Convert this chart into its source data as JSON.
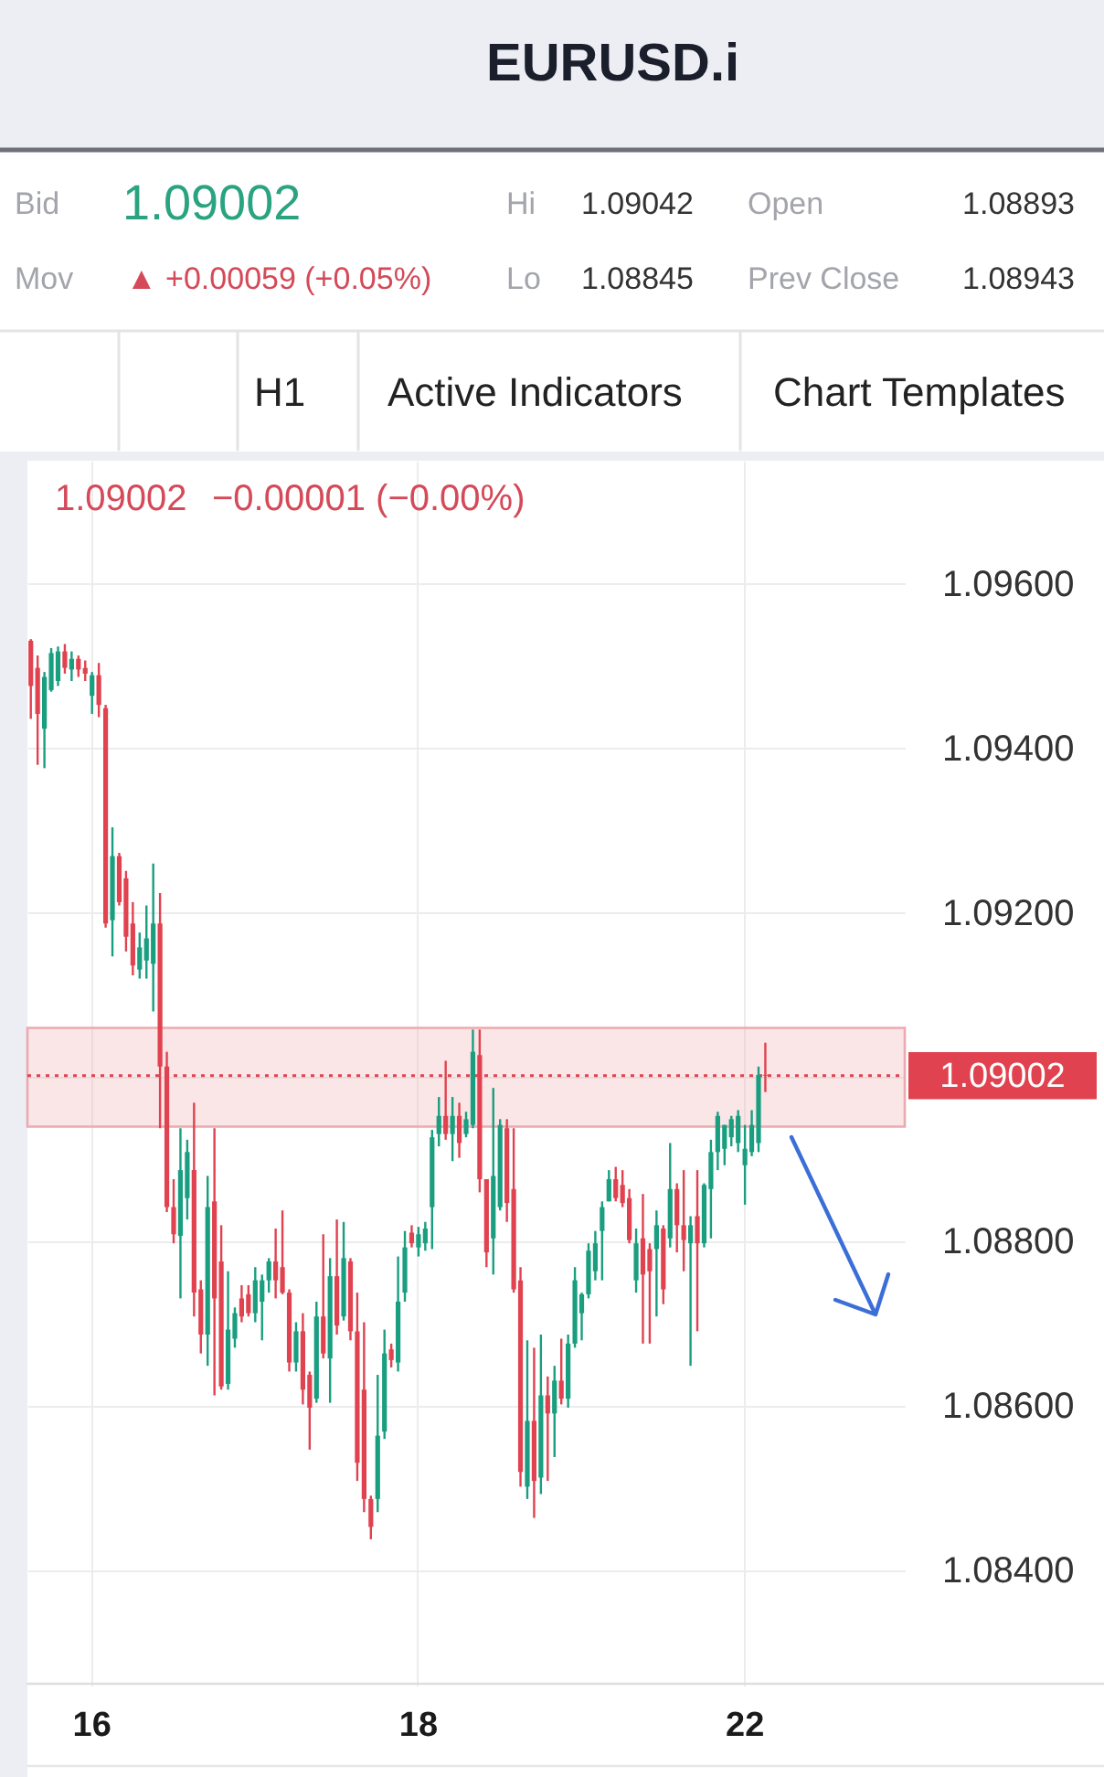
{
  "chart_data": {
    "type": "candlestick",
    "title": "EURUSD.i",
    "annotations": [
      "Bid",
      "1.09002",
      "Hi",
      "1.09042",
      "Open",
      "1.08893",
      "Mov",
      "▲ +0.00059 (+0.05%)",
      "Lo",
      "1.08845",
      "Prev Close",
      "1.08943",
      "H1",
      "Active Indicators",
      "Chart Templates",
      "1.09002",
      "−0.00001 (−0.00%)"
    ],
    "categories": [
      null,
      null,
      null,
      null,
      null,
      null,
      null,
      null,
      null,
      "16",
      null,
      null,
      null,
      null,
      null,
      null,
      null,
      null,
      null,
      null,
      null,
      null,
      null,
      null,
      null,
      null,
      null,
      null,
      null,
      null,
      null,
      null,
      null,
      null,
      null,
      null,
      null,
      null,
      null,
      null,
      null,
      null,
      null,
      null,
      null,
      null,
      null,
      null,
      null,
      null,
      null,
      null,
      null,
      null,
      null,
      null,
      null,
      "18",
      null,
      null,
      null,
      null,
      null,
      null,
      null,
      null,
      null,
      null,
      null,
      null,
      null,
      null,
      null,
      null,
      null,
      null,
      null,
      null,
      null,
      null,
      null,
      null,
      null,
      null,
      null,
      null,
      null,
      null,
      null,
      null,
      null,
      null,
      null,
      null,
      null,
      null,
      null,
      null,
      null,
      null,
      null,
      null,
      null,
      null,
      null,
      "22",
      null,
      null,
      null
    ],
    "ohlc": [
      [
        1.09531,
        1.09533,
        1.09436,
        1.09476
      ],
      [
        1.09498,
        1.09513,
        1.0938,
        1.09442
      ],
      [
        1.09424,
        1.09493,
        1.09376,
        1.09487
      ],
      [
        1.09471,
        1.09522,
        1.09469,
        1.09516
      ],
      [
        1.09482,
        1.09524,
        1.09476,
        1.09518
      ],
      [
        1.09518,
        1.09527,
        1.09491,
        1.09498
      ],
      [
        1.09496,
        1.09518,
        1.09482,
        1.09509
      ],
      [
        1.09509,
        1.09513,
        1.09487,
        1.09496
      ],
      [
        1.09498,
        1.09507,
        1.09482,
        1.09491
      ],
      [
        1.09464,
        1.09493,
        1.09442,
        1.09489
      ],
      [
        1.09489,
        1.09504,
        1.09438,
        1.09453
      ],
      [
        1.09449,
        1.09453,
        1.09182,
        1.09187
      ],
      [
        1.09191,
        1.09304,
        1.09147,
        1.09269
      ],
      [
        1.09269,
        1.09273,
        1.09209,
        1.09213
      ],
      [
        1.09242,
        1.09251,
        1.09153,
        1.09171
      ],
      [
        1.09187,
        1.09213,
        1.09124,
        1.09136
      ],
      [
        1.09131,
        1.09176,
        1.0912,
        1.09158
      ],
      [
        1.09142,
        1.09209,
        1.0912,
        1.09169
      ],
      [
        1.09138,
        1.0926,
        1.0908,
        1.09187
      ],
      [
        1.09187,
        1.09224,
        1.08938,
        1.09013
      ],
      [
        1.09013,
        1.09031,
        1.08836,
        1.08842
      ],
      [
        1.08842,
        1.08876,
        1.08798,
        1.08809
      ],
      [
        1.08807,
        1.08938,
        1.08731,
        1.08887
      ],
      [
        1.08853,
        1.08924,
        1.08827,
        1.08909
      ],
      [
        1.08887,
        1.08969,
        1.08709,
        1.08738
      ],
      [
        1.08742,
        1.08753,
        1.08664,
        1.08687
      ],
      [
        1.08687,
        1.0888,
        1.08649,
        1.08842
      ],
      [
        1.08849,
        1.08938,
        1.08613,
        1.08731
      ],
      [
        1.08776,
        1.0882,
        1.0862,
        1.08624
      ],
      [
        1.08627,
        1.08764,
        1.0862,
        1.08693
      ],
      [
        1.08682,
        1.0872,
        1.08671,
        1.08713
      ],
      [
        1.08731,
        1.08747,
        1.08702,
        1.08709
      ],
      [
        1.08736,
        1.08747,
        1.08709,
        1.08713
      ],
      [
        1.08713,
        1.08769,
        1.08702,
        1.08753
      ],
      [
        1.08727,
        1.0876,
        1.0868,
        1.08753
      ],
      [
        1.08753,
        1.0878,
        1.08738,
        1.08776
      ],
      [
        1.08776,
        1.08816,
        1.08731,
        1.08753
      ],
      [
        1.08769,
        1.08838,
        1.08736,
        1.08738
      ],
      [
        1.08738,
        1.08742,
        1.08642,
        1.08653
      ],
      [
        1.08653,
        1.08702,
        1.08642,
        1.08691
      ],
      [
        1.08691,
        1.08713,
        1.08602,
        1.0862
      ],
      [
        1.08638,
        1.08642,
        1.08547,
        1.08598
      ],
      [
        1.08609,
        1.08727,
        1.08604,
        1.08709
      ],
      [
        1.08709,
        1.08809,
        1.08658,
        1.08664
      ],
      [
        1.08658,
        1.0878,
        1.08604,
        1.08758
      ],
      [
        1.08758,
        1.08827,
        1.08687,
        1.08698
      ],
      [
        1.08709,
        1.08824,
        1.08704,
        1.0878
      ],
      [
        1.08776,
        1.0878,
        1.0868,
        1.08691
      ],
      [
        1.08691,
        1.08738,
        1.08509,
        1.08531
      ],
      [
        1.0862,
        1.08702,
        1.08471,
        1.08487
      ],
      [
        1.08487,
        1.08491,
        1.08438,
        1.08453
      ],
      [
        1.08487,
        1.08638,
        1.08471,
        1.08564
      ],
      [
        1.08569,
        1.08693,
        1.0856,
        1.08664
      ],
      [
        1.08669,
        1.08676,
        1.08647,
        1.08656
      ],
      [
        1.08653,
        1.08782,
        1.08642,
        1.08727
      ],
      [
        1.08738,
        1.08813,
        1.08727,
        1.08793
      ],
      [
        1.08811,
        1.0882,
        1.08793,
        1.08798
      ],
      [
        1.08793,
        1.08818,
        1.08782,
        1.08809
      ],
      [
        1.08798,
        1.08824,
        1.08789,
        1.08816
      ],
      [
        1.08842,
        1.08936,
        1.08791,
        1.08927
      ],
      [
        1.08931,
        1.08976,
        1.08916,
        1.08953
      ],
      [
        1.08953,
        1.0902,
        1.08924,
        1.08931
      ],
      [
        1.08931,
        1.08976,
        1.08898,
        1.08953
      ],
      [
        1.08953,
        1.08969,
        1.08902,
        1.0892
      ],
      [
        1.08931,
        1.08958,
        1.08927,
        1.08949
      ],
      [
        1.08942,
        1.09058,
        1.08938,
        1.09031
      ],
      [
        1.09027,
        1.09058,
        1.0886,
        1.08876
      ],
      [
        1.08876,
        1.08876,
        1.08769,
        1.08787
      ],
      [
        1.08804,
        1.08987,
        1.0876,
        1.0888
      ],
      [
        1.08842,
        1.08949,
        1.08838,
        1.08942
      ],
      [
        1.08938,
        1.08949,
        1.08824,
        1.08847
      ],
      [
        1.08864,
        1.08938,
        1.08738,
        1.08742
      ],
      [
        1.08753,
        1.08769,
        1.08502,
        1.0852
      ],
      [
        1.08502,
        1.0868,
        1.08487,
        1.08582
      ],
      [
        1.08582,
        1.08671,
        1.08464,
        1.08509
      ],
      [
        1.08513,
        1.08687,
        1.08493,
        1.08613
      ],
      [
        1.08613,
        1.08636,
        1.08509,
        1.08591
      ],
      [
        1.08591,
        1.08649,
        1.08538,
        1.08631
      ],
      [
        1.08631,
        1.08682,
        1.08602,
        1.08609
      ],
      [
        1.08609,
        1.08687,
        1.08598,
        1.08676
      ],
      [
        1.08676,
        1.08769,
        1.08671,
        1.08753
      ],
      [
        1.08713,
        1.08738,
        1.0868,
        1.08736
      ],
      [
        1.08736,
        1.08798,
        1.08731,
        1.08789
      ],
      [
        1.08764,
        1.08813,
        1.08753,
        1.08798
      ],
      [
        1.08813,
        1.08849,
        1.08753,
        1.08842
      ],
      [
        1.08849,
        1.08887,
        1.08849,
        1.08876
      ],
      [
        1.08876,
        1.08891,
        1.08849,
        1.08853
      ],
      [
        1.08869,
        1.08887,
        1.08842,
        1.08847
      ],
      [
        1.08853,
        1.08864,
        1.08798,
        1.08802
      ],
      [
        1.08753,
        1.08816,
        1.08738,
        1.08798
      ],
      [
        1.08804,
        1.08858,
        1.08676,
        1.0876
      ],
      [
        1.08791,
        1.08798,
        1.08676,
        1.08764
      ],
      [
        1.08791,
        1.08838,
        1.08709,
        1.0882
      ],
      [
        1.08816,
        1.0882,
        1.08724,
        1.08742
      ],
      [
        1.08804,
        1.0892,
        1.08793,
        1.08864
      ],
      [
        1.08864,
        1.08871,
        1.08787,
        1.0882
      ],
      [
        1.0882,
        1.08887,
        1.08764,
        1.08802
      ],
      [
        1.08798,
        1.08831,
        1.08649,
        1.0882
      ],
      [
        1.08831,
        1.08887,
        1.08691,
        1.08798
      ],
      [
        1.08798,
        1.08871,
        1.08793,
        1.08869
      ],
      [
        1.08864,
        1.08924,
        1.08804,
        1.08909
      ],
      [
        1.08909,
        1.08958,
        1.08887,
        1.08953
      ],
      [
        1.08913,
        1.08942,
        1.08893,
        1.08942
      ],
      [
        1.08927,
        1.08953,
        1.08916,
        1.08949
      ],
      [
        1.0892,
        1.0896,
        1.08909,
        1.08953
      ],
      [
        1.08893,
        1.08942,
        1.08845,
        1.08913
      ],
      [
        1.08909,
        1.0896,
        1.08904,
        1.08942
      ],
      [
        1.0892,
        1.09013,
        1.08909,
        1.09003
      ],
      [
        1.09003,
        1.09042,
        1.08982,
        1.09002
      ]
    ],
    "colors": [
      "#e0424f",
      "#e0424f",
      "#1a9e80",
      "#1a9e80",
      "#1a9e80",
      "#e0424f",
      "#1a9e80",
      "#e0424f",
      "#e0424f",
      "#1a9e80",
      "#e0424f",
      "#e0424f",
      "#1a9e80",
      "#e0424f",
      "#e0424f",
      "#e0424f",
      "#1a9e80",
      "#1a9e80",
      "#1a9e80",
      "#e0424f",
      "#e0424f",
      "#e0424f",
      "#1a9e80",
      "#1a9e80",
      "#e0424f",
      "#e0424f",
      "#1a9e80",
      "#e0424f",
      "#e0424f",
      "#1a9e80",
      "#1a9e80",
      "#e0424f",
      "#e0424f",
      "#1a9e80",
      "#1a9e80",
      "#1a9e80",
      "#e0424f",
      "#e0424f",
      "#e0424f",
      "#1a9e80",
      "#e0424f",
      "#e0424f",
      "#1a9e80",
      "#e0424f",
      "#1a9e80",
      "#e0424f",
      "#1a9e80",
      "#e0424f",
      "#e0424f",
      "#e0424f",
      "#e0424f",
      "#1a9e80",
      "#1a9e80",
      "#e0424f",
      "#1a9e80",
      "#1a9e80",
      "#e0424f",
      "#1a9e80",
      "#1a9e80",
      "#1a9e80",
      "#1a9e80",
      "#e0424f",
      "#1a9e80",
      "#e0424f",
      "#1a9e80",
      "#1a9e80",
      "#e0424f",
      "#e0424f",
      "#1a9e80",
      "#1a9e80",
      "#e0424f",
      "#e0424f",
      "#e0424f",
      "#1a9e80",
      "#e0424f",
      "#1a9e80",
      "#e0424f",
      "#1a9e80",
      "#e0424f",
      "#1a9e80",
      "#1a9e80",
      "#1a9e80",
      "#1a9e80",
      "#1a9e80",
      "#1a9e80",
      "#1a9e80",
      "#e0424f",
      "#e0424f",
      "#e0424f",
      "#1a9e80",
      "#e0424f",
      "#e0424f",
      "#1a9e80",
      "#e0424f",
      "#1a9e80",
      "#e0424f",
      "#e0424f",
      "#1a9e80",
      "#e0424f",
      "#1a9e80",
      "#1a9e80",
      "#1a9e80",
      "#1a9e80",
      "#1a9e80",
      "#1a9e80",
      "#1a9e80",
      "#1a9e80",
      "#1a9e80",
      "#e0424f"
    ],
    "ylim": [
      1.0826,
      1.0975
    ],
    "yticks": [
      {
        "value": 1.084,
        "label": "1.08400"
      },
      {
        "value": 1.086,
        "label": "1.08600"
      },
      {
        "value": 1.088,
        "label": "1.08800"
      },
      {
        "value": 1.09,
        "label": null
      },
      {
        "value": 1.092,
        "label": "1.09200"
      },
      {
        "value": 1.094,
        "label": "1.09400"
      },
      {
        "value": 1.096,
        "label": "1.09600"
      }
    ],
    "grid": true,
    "ref_lines": [
      {
        "axis": "y",
        "value": 1.09002,
        "label": "1.09002",
        "color": "#e0424f",
        "line_style": "dotted"
      }
    ],
    "bands": [
      {
        "axis": "y",
        "from": 1.0894,
        "to": 1.0906,
        "color": "#eda9b0"
      }
    ]
  }
}
